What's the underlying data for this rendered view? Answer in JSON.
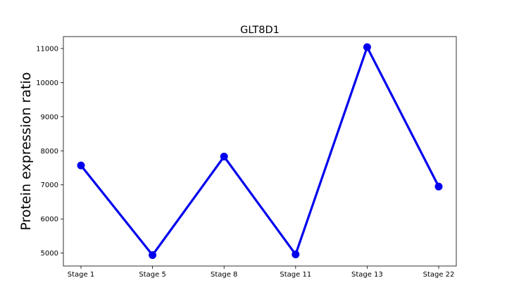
{
  "chart_data": {
    "type": "line",
    "title": "GLT8D1",
    "xlabel": "",
    "ylabel": "Protein expression ratio",
    "categories": [
      "Stage 1",
      "Stage 5",
      "Stage 8",
      "Stage 11",
      "Stage 13",
      "Stage 22"
    ],
    "series": [
      {
        "values": [
          7570,
          4940,
          7830,
          4960,
          11040,
          6950
        ],
        "color": "#0000ee"
      }
    ],
    "ylim": [
      4620,
      11350
    ],
    "yticks": [
      5000,
      6000,
      7000,
      8000,
      9000,
      10000,
      11000
    ],
    "grid": false,
    "legend": "none"
  }
}
